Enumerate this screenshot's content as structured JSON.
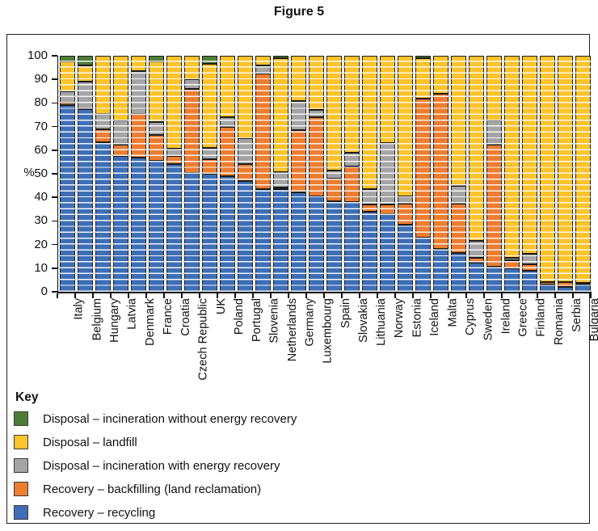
{
  "figure_title": "Figure 5",
  "key_title": "Key",
  "chart_data": {
    "type": "bar",
    "stacked": true,
    "orientation": "vertical",
    "ylabel": "%",
    "ylim": [
      0,
      100
    ],
    "yticks": [
      0,
      10,
      20,
      30,
      40,
      50,
      60,
      70,
      80,
      90,
      100
    ],
    "grid": "horizontal-minor-stripes",
    "legend_position": "bottom-left",
    "categories": [
      "Italy",
      "Belgium",
      "Hungary",
      "Latvia",
      "Denmark",
      "France",
      "Croatia",
      "Czech Republic",
      "UK",
      "Poland",
      "Portugal",
      "Slovenia",
      "Netherlands",
      "Germany",
      "Luxembourg",
      "Spain",
      "Slovakia",
      "Lithuania",
      "Norway",
      "Estonia",
      "Iceland",
      "Malta",
      "Cyprus",
      "Sweden",
      "Ireland",
      "Greece",
      "Finland",
      "Romania",
      "Serbia",
      "Bulgaria"
    ],
    "series": [
      {
        "id": "recycling",
        "name": "Recovery – recycling",
        "color": "#3E6FB7",
        "values": [
          79,
          77.5,
          63.5,
          57.5,
          57,
          55.5,
          54,
          50.5,
          50,
          49,
          47,
          43.5,
          43.5,
          42,
          40.5,
          38.5,
          38,
          34,
          33,
          28.5,
          23,
          18,
          16.5,
          12.5,
          10.5,
          10,
          9,
          3,
          2,
          3
        ]
      },
      {
        "id": "backfilling",
        "name": "Recovery – backfilling (land reclamation)",
        "color": "#ED7D31",
        "values": [
          1,
          0,
          5.5,
          5,
          18.5,
          11,
          3.5,
          35.5,
          6,
          21,
          7,
          49,
          0.5,
          26.5,
          33.5,
          9.5,
          15,
          3,
          4,
          9,
          59,
          66,
          21,
          2,
          52,
          3.5,
          2.5,
          1,
          2,
          0.5
        ]
      },
      {
        "id": "incineration-with-energy",
        "name": "Disposal – incineration with energy recovery",
        "color": "#A5A5A5",
        "values": [
          5,
          11.5,
          6.5,
          10,
          18,
          5.5,
          3,
          4,
          5,
          4,
          11,
          3.5,
          6.5,
          12.5,
          3,
          3.5,
          6,
          6.5,
          26,
          3,
          0,
          0,
          7.5,
          7,
          10,
          1,
          4.5,
          0,
          0,
          0
        ]
      },
      {
        "id": "landfill",
        "name": "Disposal – landfill",
        "color": "#FBC32C",
        "values": [
          12.5,
          7,
          24.5,
          27.5,
          6.5,
          25.5,
          39.5,
          10,
          35.5,
          26,
          35,
          4,
          48.5,
          19,
          23,
          48.5,
          41,
          56.5,
          37,
          59.5,
          17,
          16,
          55,
          78.5,
          27.5,
          85.5,
          84,
          96,
          96,
          96.5
        ]
      },
      {
        "id": "incineration-without-energy",
        "name": "Disposal – incineration without energy recovery",
        "color": "#4E7E36",
        "values": [
          2.5,
          4,
          0,
          0,
          0,
          2.5,
          0,
          0,
          3.5,
          0,
          0,
          0,
          1,
          0,
          0,
          0,
          0,
          0,
          0,
          0,
          1,
          0,
          0,
          0,
          0,
          0,
          0,
          0,
          0,
          0
        ]
      }
    ]
  }
}
